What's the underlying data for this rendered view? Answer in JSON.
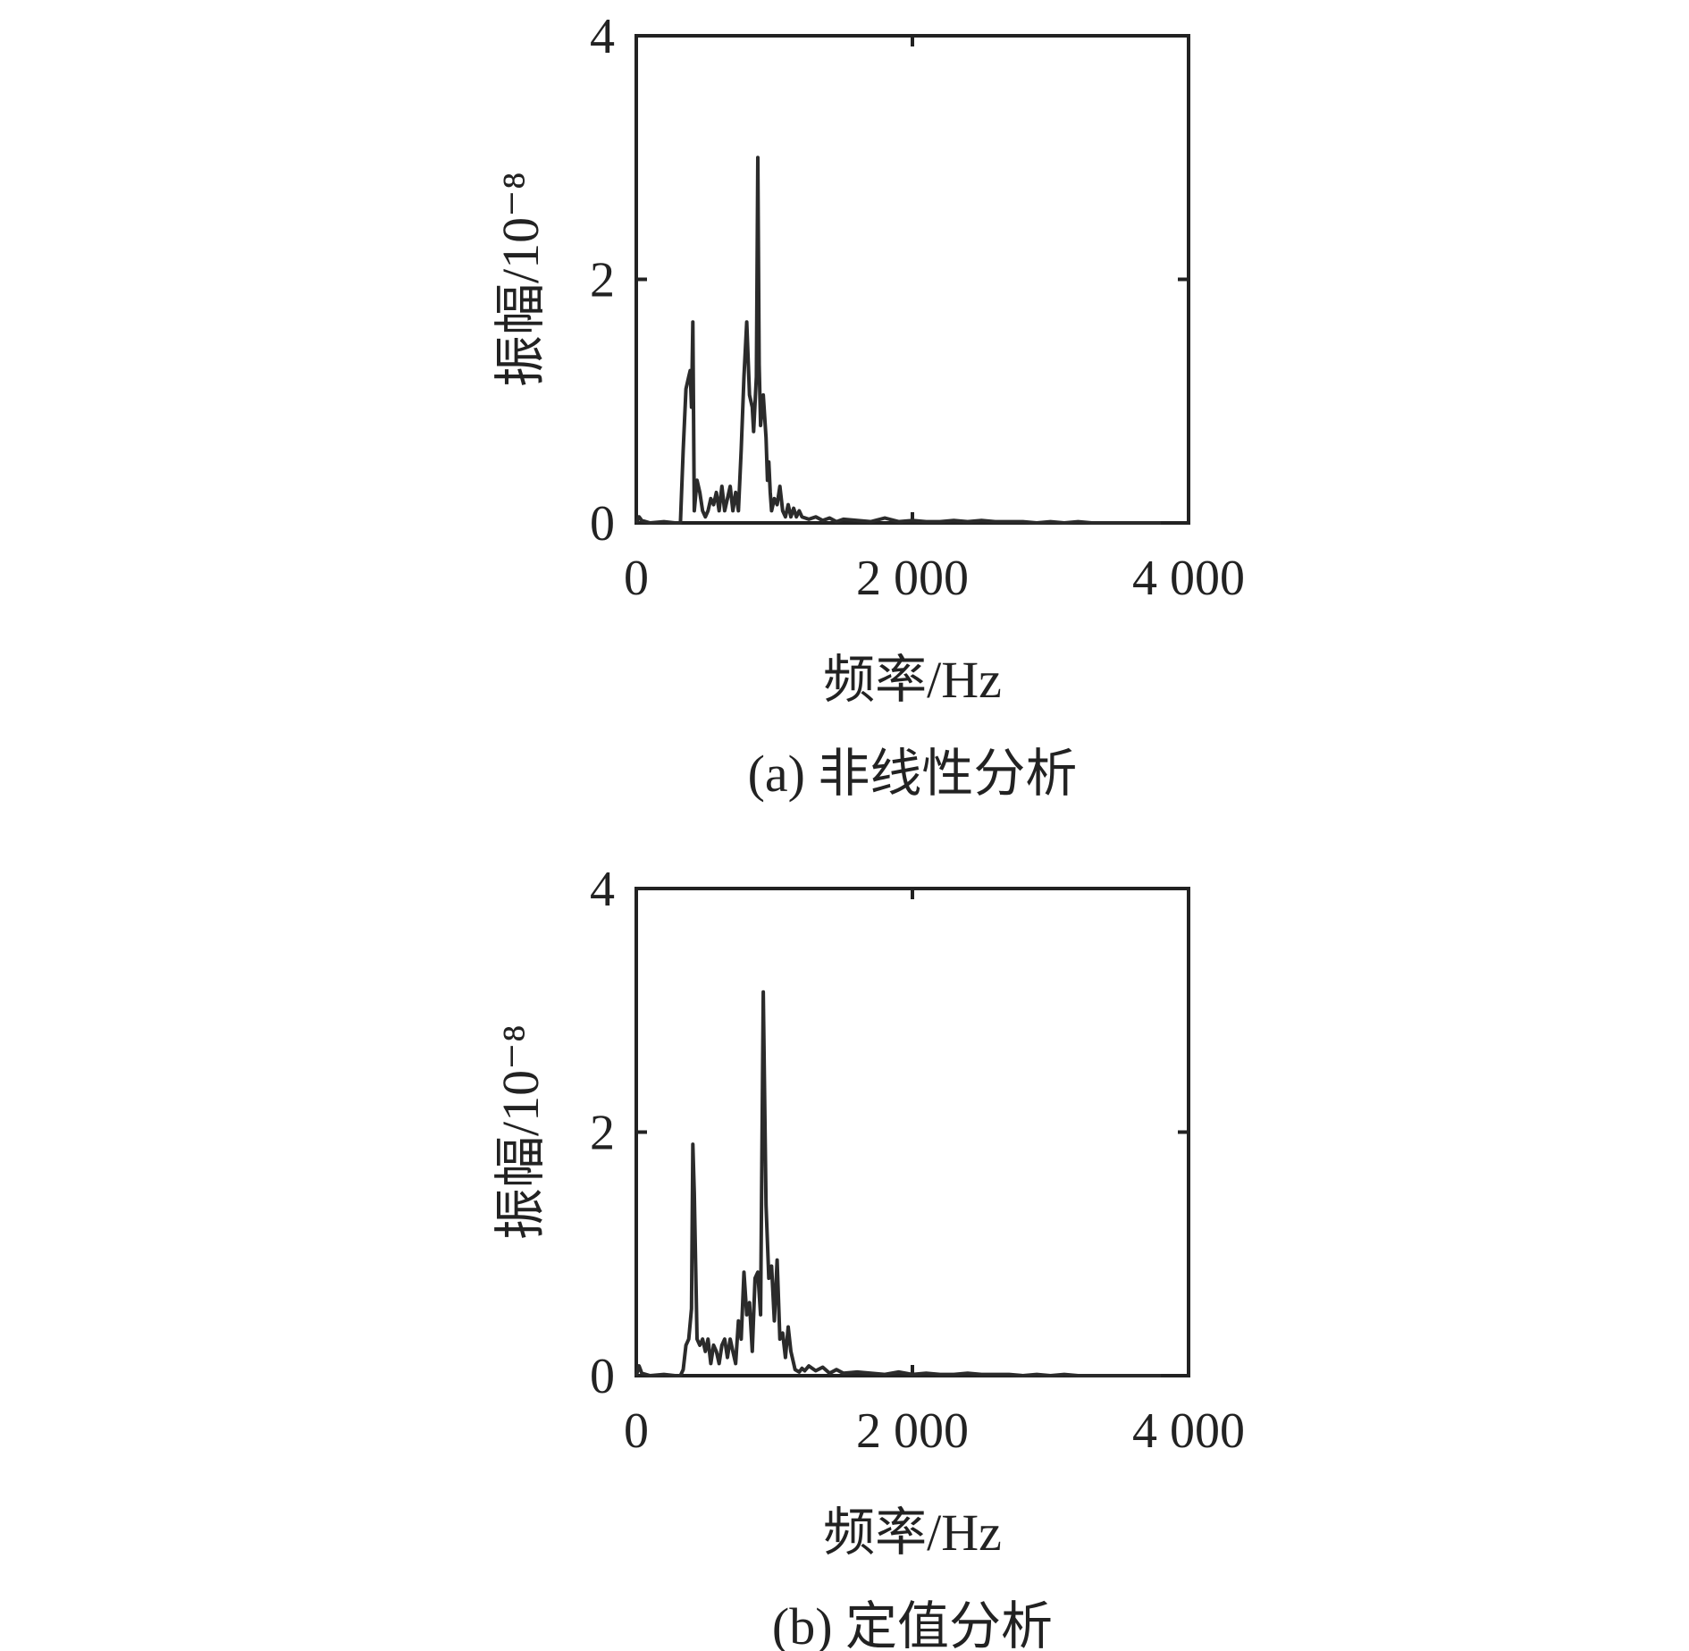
{
  "chart_data": [
    {
      "type": "line",
      "caption": "(a) 非线性分析",
      "xlabel": "频率/Hz",
      "ylabel": "振幅/10⁻⁸",
      "xlim": [
        0,
        4000
      ],
      "ylim": [
        0,
        4
      ],
      "xticks": [
        0,
        2000,
        4000
      ],
      "xtick_labels": [
        "0",
        "2 000",
        "4 000"
      ],
      "yticks": [
        0,
        2,
        4
      ],
      "ytick_labels": [
        "0",
        "2",
        "4"
      ],
      "grid": false,
      "series": [
        {
          "x": [
            0,
            20,
            40,
            100,
            200,
            280,
            320,
            340,
            360,
            380,
            390,
            400,
            410,
            420,
            440,
            460,
            480,
            500,
            520,
            540,
            560,
            580,
            600,
            620,
            640,
            660,
            680,
            700,
            720,
            740,
            760,
            780,
            800,
            820,
            840,
            850,
            870,
            880,
            890,
            900,
            920,
            940,
            950,
            960,
            970,
            980,
            1000,
            1020,
            1040,
            1060,
            1080,
            1100,
            1120,
            1140,
            1160,
            1180,
            1200,
            1250,
            1300,
            1350,
            1400,
            1450,
            1500,
            1600,
            1700,
            1800,
            1900,
            2000,
            2100,
            2200,
            2300,
            2400,
            2500,
            2600,
            2700,
            2800,
            2900,
            3000,
            3100,
            3200,
            3300,
            3400,
            3500,
            3600,
            3700,
            3800
          ],
          "y": [
            0.0,
            0.05,
            0.02,
            0.0,
            0.01,
            0.0,
            0.0,
            0.6,
            1.1,
            1.2,
            1.25,
            0.95,
            1.65,
            0.1,
            0.35,
            0.25,
            0.1,
            0.05,
            0.1,
            0.2,
            0.15,
            0.25,
            0.1,
            0.3,
            0.1,
            0.2,
            0.3,
            0.1,
            0.25,
            0.1,
            0.6,
            1.2,
            1.65,
            1.05,
            0.95,
            0.75,
            1.2,
            3.0,
            1.3,
            0.8,
            1.05,
            0.7,
            0.35,
            0.5,
            0.25,
            0.1,
            0.2,
            0.15,
            0.3,
            0.1,
            0.05,
            0.15,
            0.05,
            0.12,
            0.05,
            0.1,
            0.05,
            0.03,
            0.05,
            0.02,
            0.04,
            0.01,
            0.03,
            0.02,
            0.01,
            0.04,
            0.01,
            0.02,
            0.01,
            0.01,
            0.02,
            0.01,
            0.02,
            0.01,
            0.01,
            0.01,
            0.0,
            0.01,
            0.0,
            0.01,
            0.0,
            0.0,
            0.0,
            0.0,
            0.0,
            0.0
          ]
        }
      ]
    },
    {
      "type": "line",
      "caption": "(b) 定值分析",
      "xlabel": "频率/Hz",
      "ylabel": "振幅/10⁻⁸",
      "xlim": [
        0,
        4000
      ],
      "ylim": [
        0,
        4
      ],
      "xticks": [
        0,
        2000,
        4000
      ],
      "xtick_labels": [
        "0",
        "2 000",
        "4 000"
      ],
      "yticks": [
        0,
        2,
        4
      ],
      "ytick_labels": [
        "0",
        "2",
        "4"
      ],
      "grid": false,
      "series": [
        {
          "x": [
            0,
            20,
            40,
            100,
            200,
            280,
            320,
            340,
            360,
            380,
            400,
            410,
            420,
            440,
            460,
            480,
            500,
            520,
            540,
            560,
            580,
            600,
            620,
            640,
            660,
            680,
            700,
            720,
            740,
            760,
            780,
            800,
            820,
            840,
            860,
            880,
            900,
            920,
            940,
            960,
            980,
            1000,
            1020,
            1040,
            1060,
            1080,
            1100,
            1120,
            1150,
            1180,
            1200,
            1220,
            1250,
            1300,
            1350,
            1400,
            1450,
            1500,
            1600,
            1700,
            1800,
            1900,
            2000,
            2100,
            2200,
            2300,
            2400,
            2500,
            2600,
            2700,
            2800,
            2900,
            3000,
            3100,
            3200,
            3300,
            3400,
            3500,
            3600,
            3700,
            3800
          ],
          "y": [
            0.0,
            0.08,
            0.02,
            0.0,
            0.01,
            0.0,
            0.0,
            0.05,
            0.25,
            0.3,
            0.55,
            1.9,
            1.5,
            0.3,
            0.25,
            0.3,
            0.2,
            0.3,
            0.1,
            0.25,
            0.2,
            0.1,
            0.25,
            0.3,
            0.15,
            0.3,
            0.2,
            0.1,
            0.45,
            0.3,
            0.85,
            0.5,
            0.6,
            0.2,
            0.8,
            0.85,
            0.5,
            3.15,
            1.4,
            0.8,
            0.9,
            0.45,
            0.95,
            0.3,
            0.35,
            0.15,
            0.4,
            0.2,
            0.05,
            0.03,
            0.06,
            0.04,
            0.08,
            0.04,
            0.07,
            0.02,
            0.05,
            0.02,
            0.03,
            0.02,
            0.01,
            0.03,
            0.01,
            0.02,
            0.01,
            0.01,
            0.02,
            0.01,
            0.01,
            0.01,
            0.0,
            0.01,
            0.0,
            0.01,
            0.0,
            0.0,
            0.0,
            0.0,
            0.0,
            0.0,
            0.0
          ]
        }
      ]
    }
  ],
  "colors": {
    "line": "#2b2b2b",
    "axis": "#222222",
    "background": "#ffffff"
  }
}
